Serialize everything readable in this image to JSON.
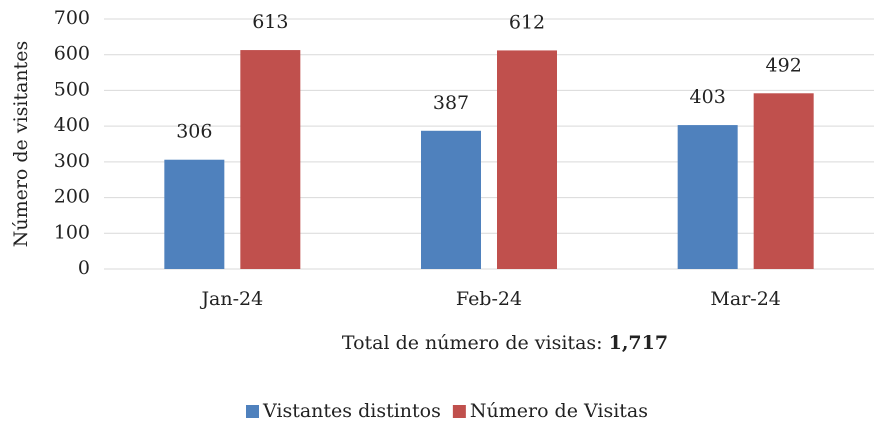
{
  "chart_data": {
    "type": "bar",
    "categories": [
      "Jan-24",
      "Feb-24",
      "Mar-24"
    ],
    "series": [
      {
        "name": "Vistantes distintos",
        "color": "#4f81bd",
        "values": [
          306,
          387,
          403
        ]
      },
      {
        "name": "Número de Visitas",
        "color": "#c0504d",
        "values": [
          613,
          612,
          492
        ]
      }
    ],
    "ylabel": "Número de visitantes",
    "xlabel": "Total de número de visitas:",
    "xlabel_total": "1,717",
    "ylim": [
      0,
      700
    ],
    "yticks": [
      0,
      100,
      200,
      300,
      400,
      500,
      600,
      700
    ],
    "grid": true,
    "legend": "bottom"
  }
}
